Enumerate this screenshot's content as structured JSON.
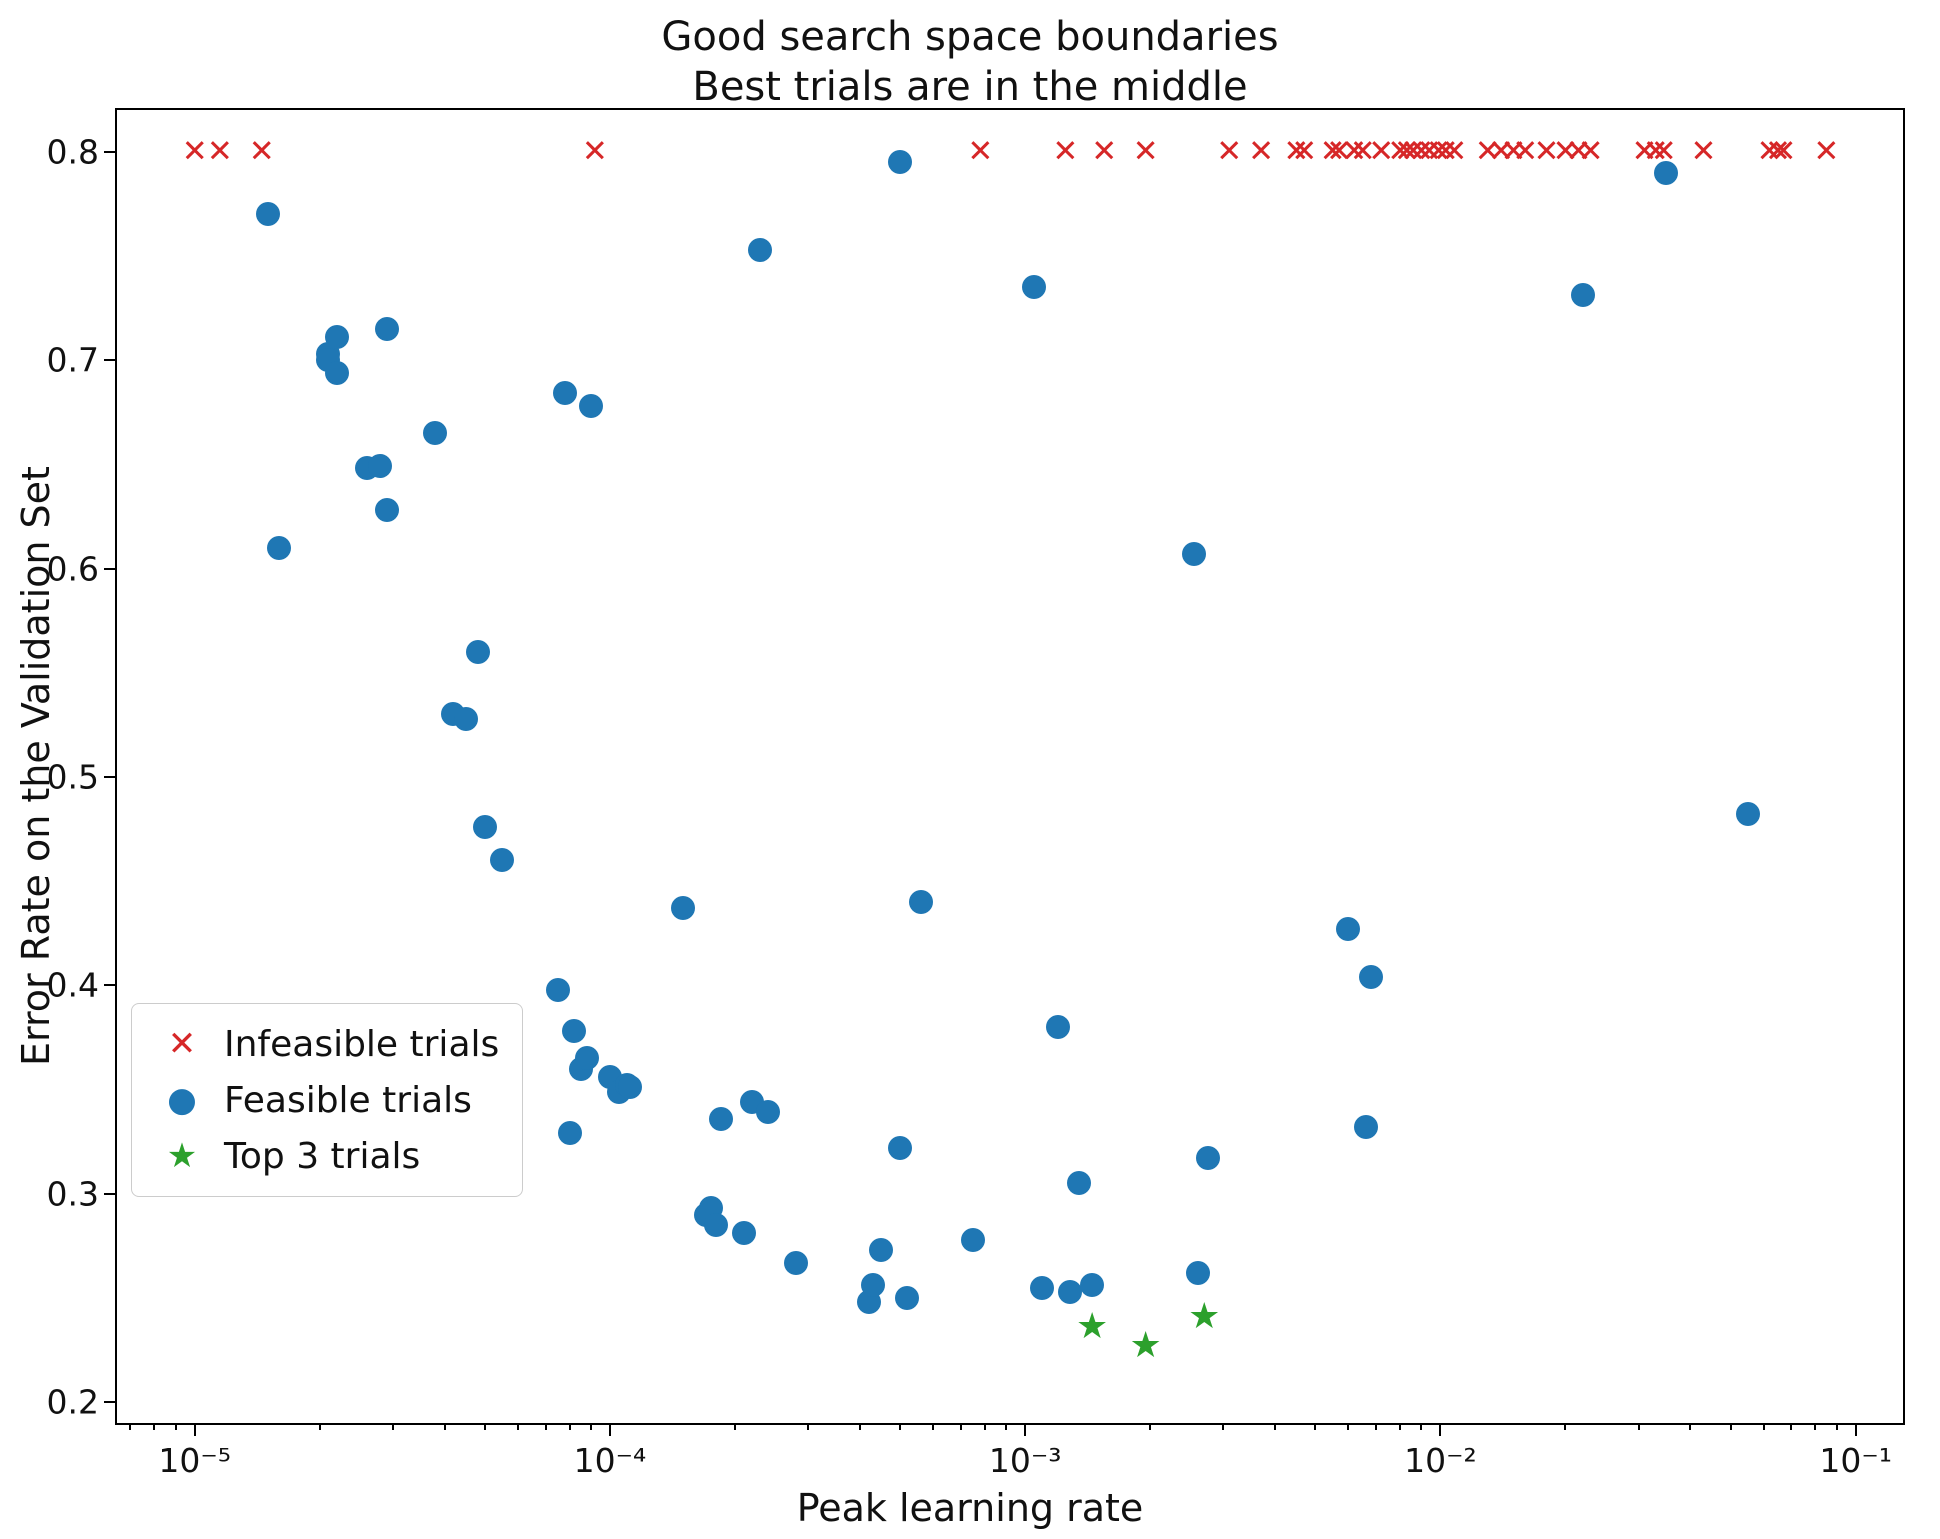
{
  "chart_data": {
    "type": "scatter",
    "title_line1": "Good search space boundaries",
    "title_line2": "Best trials are in the middle",
    "xlabel": "Peak learning rate",
    "ylabel": "Error Rate on the Validation Set",
    "x_scale": "log",
    "grid": false,
    "legend_position": "lower left",
    "xlim": [
      6.5e-06,
      0.13
    ],
    "ylim": [
      0.19,
      0.82
    ],
    "x_ticks": [
      1e-05,
      0.0001,
      0.001,
      0.01,
      0.1
    ],
    "x_tick_labels": [
      "10⁻⁵",
      "10⁻⁴",
      "10⁻³",
      "10⁻²",
      "10⁻¹"
    ],
    "y_ticks": [
      0.2,
      0.3,
      0.4,
      0.5,
      0.6,
      0.7,
      0.8
    ],
    "y_tick_labels": [
      "0.2",
      "0.3",
      "0.4",
      "0.5",
      "0.6",
      "0.7",
      "0.8"
    ],
    "series": [
      {
        "name": "Infeasible trials",
        "slug": "infeasible",
        "marker": "x",
        "glyph": "✕",
        "color": "#d62728",
        "points": [
          [
            1e-05,
            0.8
          ],
          [
            1.15e-05,
            0.8
          ],
          [
            1.45e-05,
            0.8
          ],
          [
            9.2e-05,
            0.8
          ],
          [
            0.00078,
            0.8
          ],
          [
            0.00125,
            0.8
          ],
          [
            0.00155,
            0.8
          ],
          [
            0.00195,
            0.8
          ],
          [
            0.0031,
            0.8
          ],
          [
            0.0037,
            0.8
          ],
          [
            0.0045,
            0.8
          ],
          [
            0.0047,
            0.8
          ],
          [
            0.0055,
            0.8
          ],
          [
            0.0057,
            0.8
          ],
          [
            0.0062,
            0.8
          ],
          [
            0.0065,
            0.8
          ],
          [
            0.0072,
            0.8
          ],
          [
            0.008,
            0.8
          ],
          [
            0.0083,
            0.8
          ],
          [
            0.0086,
            0.8
          ],
          [
            0.009,
            0.8
          ],
          [
            0.0094,
            0.8
          ],
          [
            0.0099,
            0.8
          ],
          [
            0.0103,
            0.8
          ],
          [
            0.0108,
            0.8
          ],
          [
            0.013,
            0.8
          ],
          [
            0.014,
            0.8
          ],
          [
            0.015,
            0.8
          ],
          [
            0.016,
            0.8
          ],
          [
            0.018,
            0.8
          ],
          [
            0.02,
            0.8
          ],
          [
            0.0215,
            0.8
          ],
          [
            0.023,
            0.8
          ],
          [
            0.031,
            0.8
          ],
          [
            0.033,
            0.8
          ],
          [
            0.0345,
            0.8
          ],
          [
            0.043,
            0.8
          ],
          [
            0.062,
            0.8
          ],
          [
            0.065,
            0.8
          ],
          [
            0.067,
            0.8
          ],
          [
            0.085,
            0.8
          ]
        ]
      },
      {
        "name": "Feasible trials",
        "slug": "feasible",
        "marker": "circle",
        "glyph": "●",
        "color": "#1f77b4",
        "points": [
          [
            1.5e-05,
            0.77
          ],
          [
            1.6e-05,
            0.61
          ],
          [
            2.1e-05,
            0.703
          ],
          [
            2.1e-05,
            0.7
          ],
          [
            2.2e-05,
            0.711
          ],
          [
            2.2e-05,
            0.694
          ],
          [
            2.6e-05,
            0.648
          ],
          [
            2.8e-05,
            0.649
          ],
          [
            2.9e-05,
            0.715
          ],
          [
            2.9e-05,
            0.628
          ],
          [
            3.8e-05,
            0.665
          ],
          [
            4.2e-05,
            0.53
          ],
          [
            4.5e-05,
            0.528
          ],
          [
            4.8e-05,
            0.56
          ],
          [
            5e-05,
            0.476
          ],
          [
            5.5e-05,
            0.46
          ],
          [
            7.5e-05,
            0.398
          ],
          [
            7.8e-05,
            0.684
          ],
          [
            8e-05,
            0.329
          ],
          [
            8.2e-05,
            0.378
          ],
          [
            8.5e-05,
            0.36
          ],
          [
            8.8e-05,
            0.365
          ],
          [
            9e-05,
            0.678
          ],
          [
            0.0001,
            0.356
          ],
          [
            0.000105,
            0.349
          ],
          [
            0.00011,
            0.352
          ],
          [
            0.000112,
            0.351
          ],
          [
            0.00015,
            0.437
          ],
          [
            0.00017,
            0.29
          ],
          [
            0.000175,
            0.293
          ],
          [
            0.00018,
            0.285
          ],
          [
            0.000185,
            0.336
          ],
          [
            0.00021,
            0.281
          ],
          [
            0.00022,
            0.344
          ],
          [
            0.00024,
            0.339
          ],
          [
            0.00023,
            0.753
          ],
          [
            0.00028,
            0.267
          ],
          [
            0.00042,
            0.248
          ],
          [
            0.00043,
            0.256
          ],
          [
            0.00045,
            0.273
          ],
          [
            0.0005,
            0.322
          ],
          [
            0.00052,
            0.25
          ],
          [
            0.0005,
            0.795
          ],
          [
            0.00056,
            0.44
          ],
          [
            0.00075,
            0.278
          ],
          [
            0.00105,
            0.735
          ],
          [
            0.0011,
            0.255
          ],
          [
            0.0012,
            0.38
          ],
          [
            0.00128,
            0.253
          ],
          [
            0.00135,
            0.305
          ],
          [
            0.00145,
            0.256
          ],
          [
            0.00255,
            0.607
          ],
          [
            0.0026,
            0.262
          ],
          [
            0.00275,
            0.317
          ],
          [
            0.006,
            0.427
          ],
          [
            0.0068,
            0.404
          ],
          [
            0.0066,
            0.332
          ],
          [
            0.022,
            0.731
          ],
          [
            0.035,
            0.79
          ],
          [
            0.055,
            0.482
          ]
        ]
      },
      {
        "name": "Top 3 trials",
        "slug": "top3",
        "marker": "star",
        "glyph": "★",
        "color": "#2ca02c",
        "points": [
          [
            0.00145,
            0.236
          ],
          [
            0.00195,
            0.227
          ],
          [
            0.0027,
            0.241
          ]
        ]
      }
    ]
  }
}
